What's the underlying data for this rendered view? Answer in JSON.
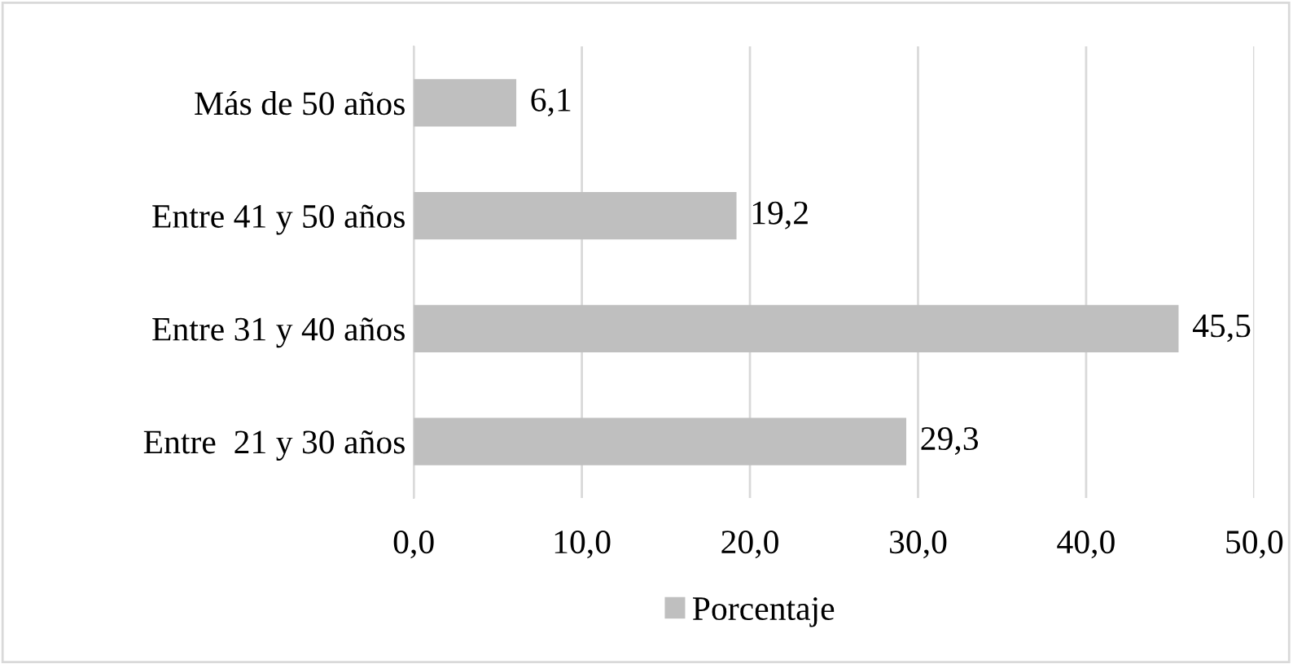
{
  "chart_data": {
    "type": "bar",
    "orientation": "horizontal",
    "categories": [
      "Más de 50 años",
      "Entre 41 y 50 años",
      "Entre 31 y 40 años",
      "Entre  21 y 30 años"
    ],
    "series": [
      {
        "name": "Porcentaje",
        "color": "#bfbfbf",
        "values": [
          6.1,
          19.2,
          45.5,
          29.3
        ],
        "value_labels": [
          "6,1",
          "19,2",
          "45,5",
          "29,3"
        ]
      }
    ],
    "xlim": [
      0,
      50
    ],
    "xticks": [
      {
        "value": 0,
        "label": "0,0"
      },
      {
        "value": 10,
        "label": "10,0"
      },
      {
        "value": 20,
        "label": "20,0"
      },
      {
        "value": 30,
        "label": "30,0"
      },
      {
        "value": 40,
        "label": "40,0"
      },
      {
        "value": 50,
        "label": "50,0"
      }
    ],
    "grid": "x",
    "legend": "bottom"
  }
}
